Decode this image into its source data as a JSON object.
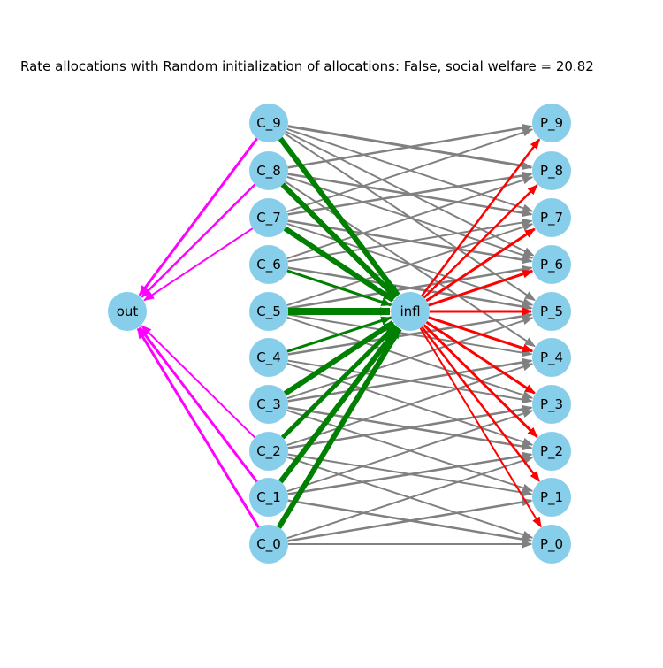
{
  "title": "Rate allocations with Random initialization of allocations: False, social welfare = 20.82",
  "colors": {
    "node_fill": "#87ceeb",
    "edge_gray": "#808080",
    "edge_green": "#008000",
    "edge_red": "#ff0000",
    "edge_magenta": "#ff00ff"
  },
  "nodes": {
    "out": "out",
    "infl": "infl",
    "consumers": [
      "C_0",
      "C_1",
      "C_2",
      "C_3",
      "C_4",
      "C_5",
      "C_6",
      "C_7",
      "C_8",
      "C_9"
    ],
    "producers": [
      "P_0",
      "P_1",
      "P_2",
      "P_3",
      "P_4",
      "P_5",
      "P_6",
      "P_7",
      "P_8",
      "P_9"
    ]
  },
  "edges": {
    "consumer_to_out": [
      {
        "from": "C_0",
        "to": "out",
        "color": "magenta",
        "weight": 3
      },
      {
        "from": "C_1",
        "to": "out",
        "color": "magenta",
        "weight": 3
      },
      {
        "from": "C_2",
        "to": "out",
        "color": "magenta",
        "weight": 2
      },
      {
        "from": "C_7",
        "to": "out",
        "color": "magenta",
        "weight": 2
      },
      {
        "from": "C_8",
        "to": "out",
        "color": "magenta",
        "weight": 2.5
      },
      {
        "from": "C_9",
        "to": "out",
        "color": "magenta",
        "weight": 3
      }
    ],
    "consumer_to_infl": [
      {
        "from": "C_0",
        "to": "infl",
        "color": "green",
        "weight": 6
      },
      {
        "from": "C_1",
        "to": "infl",
        "color": "green",
        "weight": 6
      },
      {
        "from": "C_2",
        "to": "infl",
        "color": "green",
        "weight": 5
      },
      {
        "from": "C_3",
        "to": "infl",
        "color": "green",
        "weight": 6
      },
      {
        "from": "C_4",
        "to": "infl",
        "color": "green",
        "weight": 3
      },
      {
        "from": "C_5",
        "to": "infl",
        "color": "green",
        "weight": 8
      },
      {
        "from": "C_6",
        "to": "infl",
        "color": "green",
        "weight": 3
      },
      {
        "from": "C_7",
        "to": "infl",
        "color": "green",
        "weight": 6
      },
      {
        "from": "C_8",
        "to": "infl",
        "color": "green",
        "weight": 6
      },
      {
        "from": "C_9",
        "to": "infl",
        "color": "green",
        "weight": 6
      }
    ],
    "infl_to_producer": [
      {
        "from": "infl",
        "to": "P_0",
        "color": "red",
        "weight": 2
      },
      {
        "from": "infl",
        "to": "P_1",
        "color": "red",
        "weight": 2.5
      },
      {
        "from": "infl",
        "to": "P_2",
        "color": "red",
        "weight": 3
      },
      {
        "from": "infl",
        "to": "P_3",
        "color": "red",
        "weight": 3
      },
      {
        "from": "infl",
        "to": "P_4",
        "color": "red",
        "weight": 3
      },
      {
        "from": "infl",
        "to": "P_5",
        "color": "red",
        "weight": 3
      },
      {
        "from": "infl",
        "to": "P_6",
        "color": "red",
        "weight": 3
      },
      {
        "from": "infl",
        "to": "P_7",
        "color": "red",
        "weight": 3
      },
      {
        "from": "infl",
        "to": "P_8",
        "color": "red",
        "weight": 2.5
      },
      {
        "from": "infl",
        "to": "P_9",
        "color": "red",
        "weight": 2.5
      }
    ],
    "consumer_to_producer": [
      {
        "from": "C_9",
        "to": "P_8",
        "color": "gray",
        "weight": 3
      },
      {
        "from": "C_9",
        "to": "P_7",
        "color": "gray",
        "weight": 2
      },
      {
        "from": "C_9",
        "to": "P_6",
        "color": "gray",
        "weight": 2
      },
      {
        "from": "C_9",
        "to": "P_5",
        "color": "gray",
        "weight": 2
      },
      {
        "from": "C_8",
        "to": "P_9",
        "color": "gray",
        "weight": 2.5
      },
      {
        "from": "C_8",
        "to": "P_7",
        "color": "gray",
        "weight": 2.5
      },
      {
        "from": "C_8",
        "to": "P_6",
        "color": "gray",
        "weight": 2
      },
      {
        "from": "C_8",
        "to": "P_4",
        "color": "gray",
        "weight": 2
      },
      {
        "from": "C_7",
        "to": "P_9",
        "color": "gray",
        "weight": 2
      },
      {
        "from": "C_7",
        "to": "P_8",
        "color": "gray",
        "weight": 2.5
      },
      {
        "from": "C_7",
        "to": "P_6",
        "color": "gray",
        "weight": 2.5
      },
      {
        "from": "C_7",
        "to": "P_5",
        "color": "gray",
        "weight": 2
      },
      {
        "from": "C_6",
        "to": "P_8",
        "color": "gray",
        "weight": 2
      },
      {
        "from": "C_6",
        "to": "P_7",
        "color": "gray",
        "weight": 2
      },
      {
        "from": "C_6",
        "to": "P_5",
        "color": "gray",
        "weight": 2.5
      },
      {
        "from": "C_6",
        "to": "P_4",
        "color": "gray",
        "weight": 2
      },
      {
        "from": "C_5",
        "to": "P_7",
        "color": "gray",
        "weight": 2
      },
      {
        "from": "C_5",
        "to": "P_6",
        "color": "gray",
        "weight": 2.5
      },
      {
        "from": "C_5",
        "to": "P_4",
        "color": "gray",
        "weight": 2
      },
      {
        "from": "C_5",
        "to": "P_3",
        "color": "gray",
        "weight": 2
      },
      {
        "from": "C_4",
        "to": "P_6",
        "color": "gray",
        "weight": 2
      },
      {
        "from": "C_4",
        "to": "P_5",
        "color": "gray",
        "weight": 2.5
      },
      {
        "from": "C_4",
        "to": "P_3",
        "color": "gray",
        "weight": 2
      },
      {
        "from": "C_4",
        "to": "P_2",
        "color": "gray",
        "weight": 2
      },
      {
        "from": "C_3",
        "to": "P_5",
        "color": "gray",
        "weight": 2
      },
      {
        "from": "C_3",
        "to": "P_4",
        "color": "gray",
        "weight": 2.5
      },
      {
        "from": "C_3",
        "to": "P_2",
        "color": "gray",
        "weight": 2.5
      },
      {
        "from": "C_3",
        "to": "P_1",
        "color": "gray",
        "weight": 2
      },
      {
        "from": "C_2",
        "to": "P_4",
        "color": "gray",
        "weight": 2
      },
      {
        "from": "C_2",
        "to": "P_3",
        "color": "gray",
        "weight": 2.5
      },
      {
        "from": "C_2",
        "to": "P_1",
        "color": "gray",
        "weight": 2
      },
      {
        "from": "C_2",
        "to": "P_0",
        "color": "gray",
        "weight": 2
      },
      {
        "from": "C_1",
        "to": "P_3",
        "color": "gray",
        "weight": 2
      },
      {
        "from": "C_1",
        "to": "P_2",
        "color": "gray",
        "weight": 2.5
      },
      {
        "from": "C_1",
        "to": "P_0",
        "color": "gray",
        "weight": 2.5
      },
      {
        "from": "C_0",
        "to": "P_2",
        "color": "gray",
        "weight": 2
      },
      {
        "from": "C_0",
        "to": "P_1",
        "color": "gray",
        "weight": 2.5
      },
      {
        "from": "C_0",
        "to": "P_0",
        "color": "gray",
        "weight": 2
      }
    ]
  }
}
